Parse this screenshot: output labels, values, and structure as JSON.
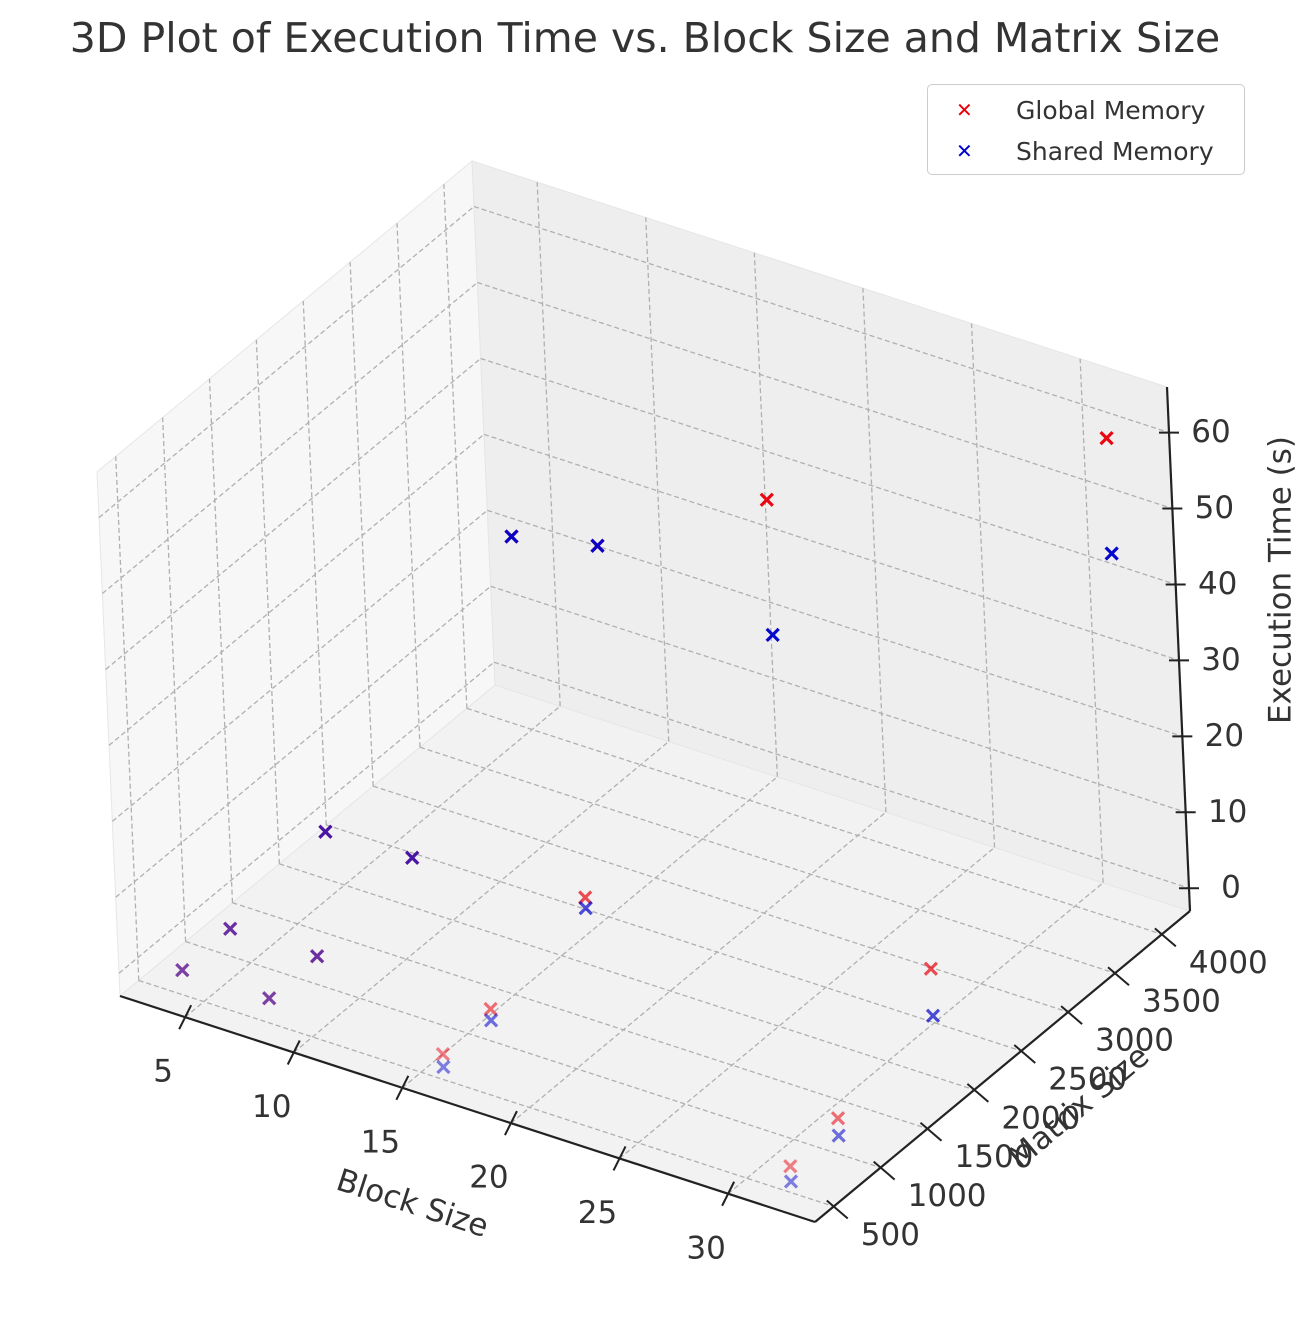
{
  "chart_data": {
    "type": "scatter",
    "projection": "3d",
    "title": "3D Plot of Execution Time vs. Block Size and Matrix Size",
    "xlabel": "Block Size",
    "ylabel": "Matrix Size",
    "zlabel": "Execution Time (s)",
    "xticks": [
      "5",
      "10",
      "15",
      "20",
      "25",
      "30"
    ],
    "yticks": [
      "500",
      "1000",
      "1500",
      "2000",
      "2500",
      "3000",
      "3500",
      "4000"
    ],
    "zticks": [
      "0",
      "10",
      "20",
      "30",
      "40",
      "50",
      "60"
    ],
    "xlim": [
      2,
      34
    ],
    "ylim": [
      300,
      4300
    ],
    "zlim": [
      -3,
      66
    ],
    "grid": true,
    "legend_position": "top-right",
    "marker": "x",
    "series": [
      {
        "name": "Global Memory",
        "color": "#e8000b",
        "points": [
          {
            "x": 4,
            "y": 512,
            "z": 0.1
          },
          {
            "x": 8,
            "y": 512,
            "z": 0.1
          },
          {
            "x": 16,
            "y": 512,
            "z": 0.2
          },
          {
            "x": 32,
            "y": 512,
            "z": 0.3
          },
          {
            "x": 4,
            "y": 1024,
            "z": 0.3
          },
          {
            "x": 8,
            "y": 1024,
            "z": 0.4
          },
          {
            "x": 16,
            "y": 1024,
            "z": 0.9
          },
          {
            "x": 32,
            "y": 1024,
            "z": 1.4
          },
          {
            "x": 4,
            "y": 2048,
            "z": 2.6
          },
          {
            "x": 8,
            "y": 2048,
            "z": 2.9
          },
          {
            "x": 16,
            "y": 2048,
            "z": 5.1
          },
          {
            "x": 32,
            "y": 2048,
            "z": 10.6
          },
          {
            "x": 4,
            "y": 4096,
            "z": 20.5
          },
          {
            "x": 8,
            "y": 4096,
            "z": 23.0
          },
          {
            "x": 16,
            "y": 4096,
            "z": 36.5
          },
          {
            "x": 32,
            "y": 4096,
            "z": 59.5
          }
        ]
      },
      {
        "name": "Shared Memory",
        "color": "#0000cc",
        "points": [
          {
            "x": 4,
            "y": 512,
            "z": 0.1
          },
          {
            "x": 8,
            "y": 512,
            "z": 0.1
          },
          {
            "x": 16,
            "y": 512,
            "z": -1.5
          },
          {
            "x": 32,
            "y": 512,
            "z": -1.7
          },
          {
            "x": 4,
            "y": 1024,
            "z": 0.3
          },
          {
            "x": 8,
            "y": 1024,
            "z": 0.4
          },
          {
            "x": 16,
            "y": 1024,
            "z": -0.6
          },
          {
            "x": 32,
            "y": 1024,
            "z": -0.9
          },
          {
            "x": 4,
            "y": 2048,
            "z": 2.6
          },
          {
            "x": 8,
            "y": 2048,
            "z": 2.9
          },
          {
            "x": 16,
            "y": 2048,
            "z": 3.7
          },
          {
            "x": 32,
            "y": 2048,
            "z": 4.4
          },
          {
            "x": 4,
            "y": 4096,
            "z": 20.5
          },
          {
            "x": 8,
            "y": 4096,
            "z": 23.0
          },
          {
            "x": 16,
            "y": 4096,
            "z": 18.7
          },
          {
            "x": 32,
            "y": 4096,
            "z": 44.3
          }
        ]
      }
    ]
  }
}
